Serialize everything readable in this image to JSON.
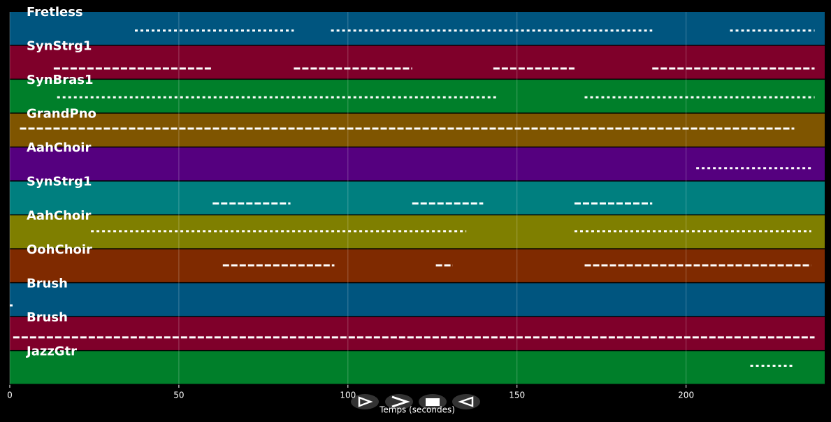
{
  "chart_data": {
    "type": "pianoroll",
    "xlabel": "Temps (secondes)",
    "xlim": [
      0,
      241
    ],
    "xticks": [
      0,
      50,
      100,
      150,
      200
    ],
    "grid": true,
    "tracks": [
      {
        "name": "Fretless",
        "color": "#00557f",
        "notes": [
          [
            37,
            84
          ],
          [
            95,
            190
          ],
          [
            213,
            238
          ]
        ]
      },
      {
        "name": "SynStrg1",
        "color": "#7f002a",
        "notes": [
          [
            13,
            60
          ],
          [
            84,
            119
          ],
          [
            143,
            167
          ],
          [
            190,
            238
          ]
        ]
      },
      {
        "name": "SynBras1",
        "color": "#007f2a",
        "notes": [
          [
            14,
            144
          ],
          [
            170,
            238
          ]
        ]
      },
      {
        "name": "GrandPno",
        "color": "#7f5500",
        "notes": [
          [
            3,
            232
          ]
        ]
      },
      {
        "name": "AahChoir",
        "color": "#55007f",
        "notes": [
          [
            203,
            237
          ]
        ]
      },
      {
        "name": "SynStrg1",
        "color": "#007f7f",
        "notes": [
          [
            60,
            83
          ],
          [
            119,
            140
          ],
          [
            167,
            190
          ]
        ]
      },
      {
        "name": "AahChoir",
        "color": "#7f7f00",
        "notes": [
          [
            24,
            135
          ],
          [
            167,
            237
          ]
        ]
      },
      {
        "name": "OohChoir",
        "color": "#7f2a00",
        "notes": [
          [
            63,
            96
          ],
          [
            126,
            131
          ],
          [
            170,
            237
          ]
        ]
      },
      {
        "name": "Brush",
        "color": "#00557f",
        "notes": [
          [
            0,
            1
          ]
        ]
      },
      {
        "name": "Brush",
        "color": "#7f002a",
        "notes": [
          [
            1,
            238
          ]
        ]
      },
      {
        "name": "JazzGtr",
        "color": "#007f2a",
        "notes": [
          [
            219,
            232
          ]
        ]
      }
    ]
  }
}
